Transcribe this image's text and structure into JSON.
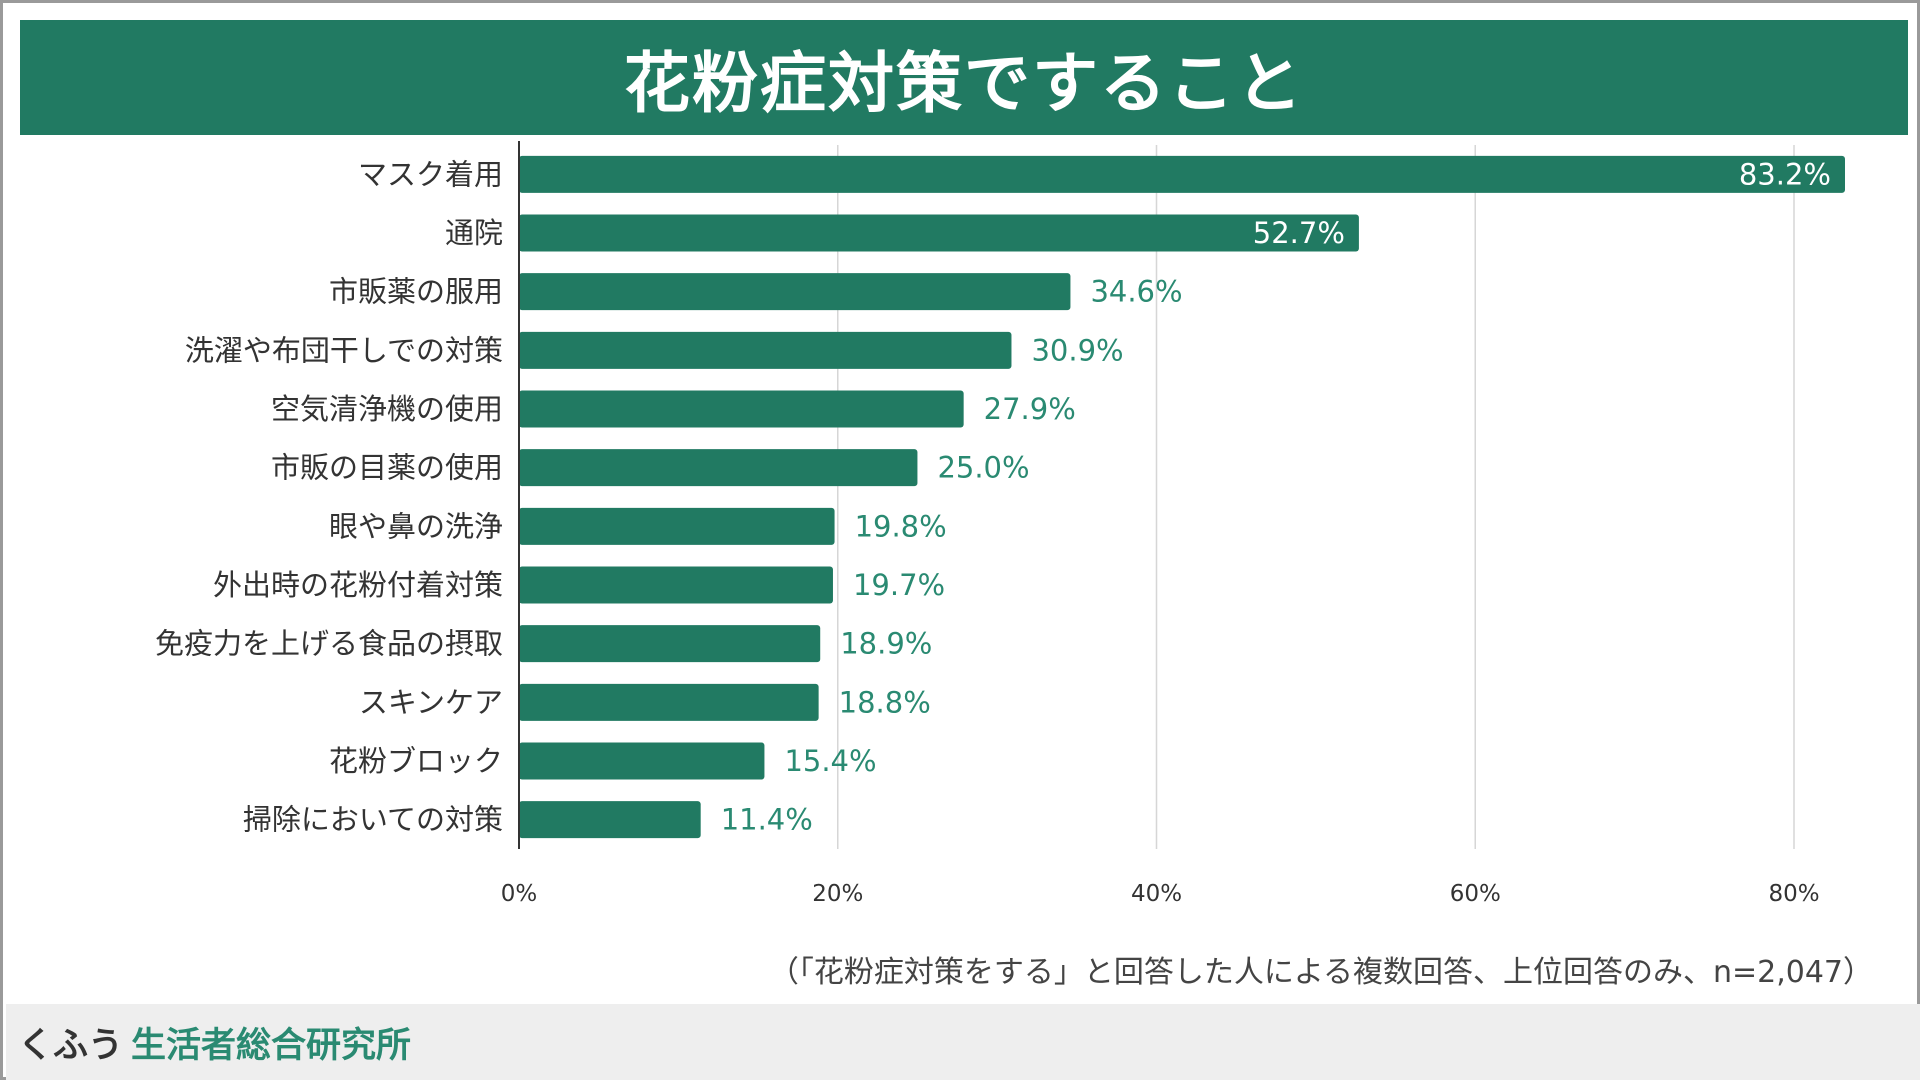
{
  "chart_data": {
    "type": "bar",
    "orientation": "horizontal",
    "title": "花粉症対策ですること",
    "categories": [
      "マスク着用",
      "通院",
      "市販薬の服用",
      "洗濯や布団干しでの対策",
      "空気清浄機の使用",
      "市販の目薬の使用",
      "眼や鼻の洗浄",
      "外出時の花粉付着対策",
      "免疫力を上げる食品の摂取",
      "スキンケア",
      "花粉ブロック",
      "掃除においての対策"
    ],
    "values": [
      83.2,
      52.7,
      34.6,
      30.9,
      27.9,
      25.0,
      19.8,
      19.7,
      18.9,
      18.8,
      15.4,
      11.4
    ],
    "value_labels": [
      "83.2%",
      "52.7%",
      "34.6%",
      "30.9%",
      "27.9%",
      "25.0%",
      "19.8%",
      "19.7%",
      "18.9%",
      "18.8%",
      "15.4%",
      "11.4%"
    ],
    "xlim": [
      0,
      85
    ],
    "xticks": [
      0,
      20,
      40,
      60,
      80
    ],
    "xtick_labels": [
      "0%",
      "20%",
      "40%",
      "60%",
      "80%"
    ],
    "xlabel": "",
    "ylabel": "",
    "grid": true,
    "note": "（「花粉症対策をする」と回答した人による複数回答、上位回答のみ、n=2,047）"
  },
  "footer": {
    "brand_part1": "くふう",
    "brand_part2": "生活者総合研究所"
  },
  "colors": {
    "bar": "#217a62",
    "label_outside": "#2a8a72",
    "label_inside": "#ffffff",
    "grid": "#d6d6d6",
    "axis": "#333333"
  }
}
